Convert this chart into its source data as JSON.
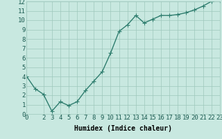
{
  "title": "",
  "xlabel": "Humidex (Indice chaleur)",
  "ylabel": "",
  "x": [
    0,
    1,
    2,
    3,
    4,
    5,
    6,
    7,
    8,
    9,
    10,
    11,
    12,
    13,
    14,
    15,
    16,
    17,
    18,
    19,
    20,
    21,
    22,
    23
  ],
  "y": [
    4.0,
    2.7,
    2.1,
    0.3,
    1.3,
    0.9,
    1.3,
    2.5,
    3.5,
    4.5,
    6.5,
    8.8,
    9.5,
    10.5,
    9.7,
    10.1,
    10.5,
    10.5,
    10.6,
    10.8,
    11.1,
    11.5,
    12.0,
    12.1
  ],
  "line_color": "#2e7d6e",
  "bg_color": "#c8e8e0",
  "grid_color": "#9ec8bc",
  "ylim": [
    0,
    12
  ],
  "xlim": [
    0,
    23
  ],
  "yticks": [
    0,
    1,
    2,
    3,
    4,
    5,
    6,
    7,
    8,
    9,
    10,
    11,
    12
  ],
  "xticks": [
    0,
    2,
    3,
    4,
    5,
    6,
    7,
    8,
    9,
    10,
    11,
    12,
    13,
    14,
    15,
    16,
    17,
    18,
    19,
    20,
    21,
    22,
    23
  ],
  "marker": "+",
  "marker_size": 4,
  "line_width": 1.0,
  "xlabel_fontsize": 7,
  "tick_fontsize": 6.5
}
